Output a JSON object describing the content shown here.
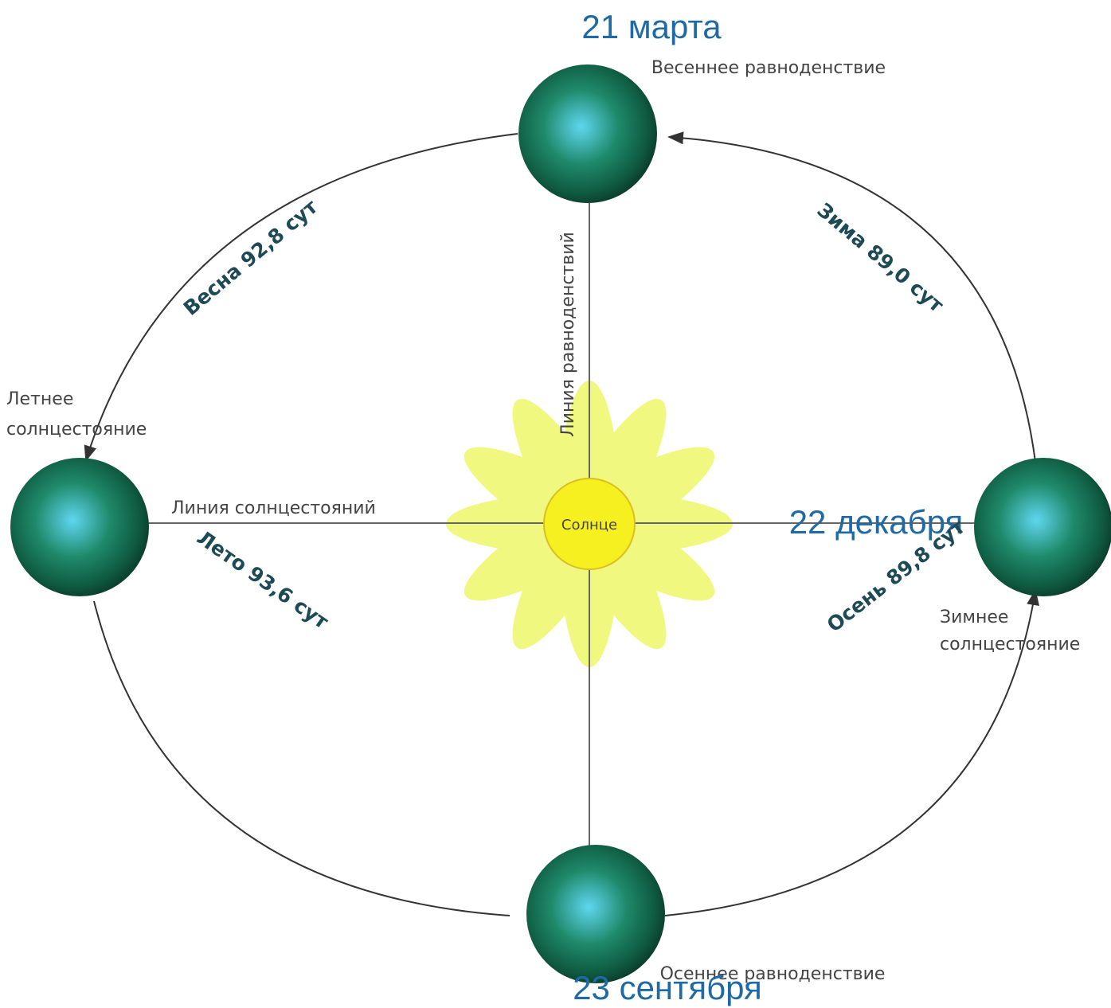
{
  "dates": {
    "march": "21 марта",
    "december": "22 декабря",
    "september": "23 сентября"
  },
  "points": {
    "spring_equinox": "Весеннее равноденствие",
    "summer_solstice_1": "Летнее",
    "summer_solstice_2": "солнцестояние",
    "winter_solstice_1": "Зимнее",
    "winter_solstice_2": "солнцестояние",
    "autumn_equinox": "Осеннее равноденствие"
  },
  "lines": {
    "solstices": "Линия солнцестояний",
    "equinoxes": "Линия равноденствий",
    "sun": "Солнце"
  },
  "seasons": {
    "spring": "Весна 92,8 сут",
    "winter": "Зима 89,0 сут",
    "summer": "Лето 93,6 сут",
    "autumn": "Осень 89,8 сут"
  }
}
